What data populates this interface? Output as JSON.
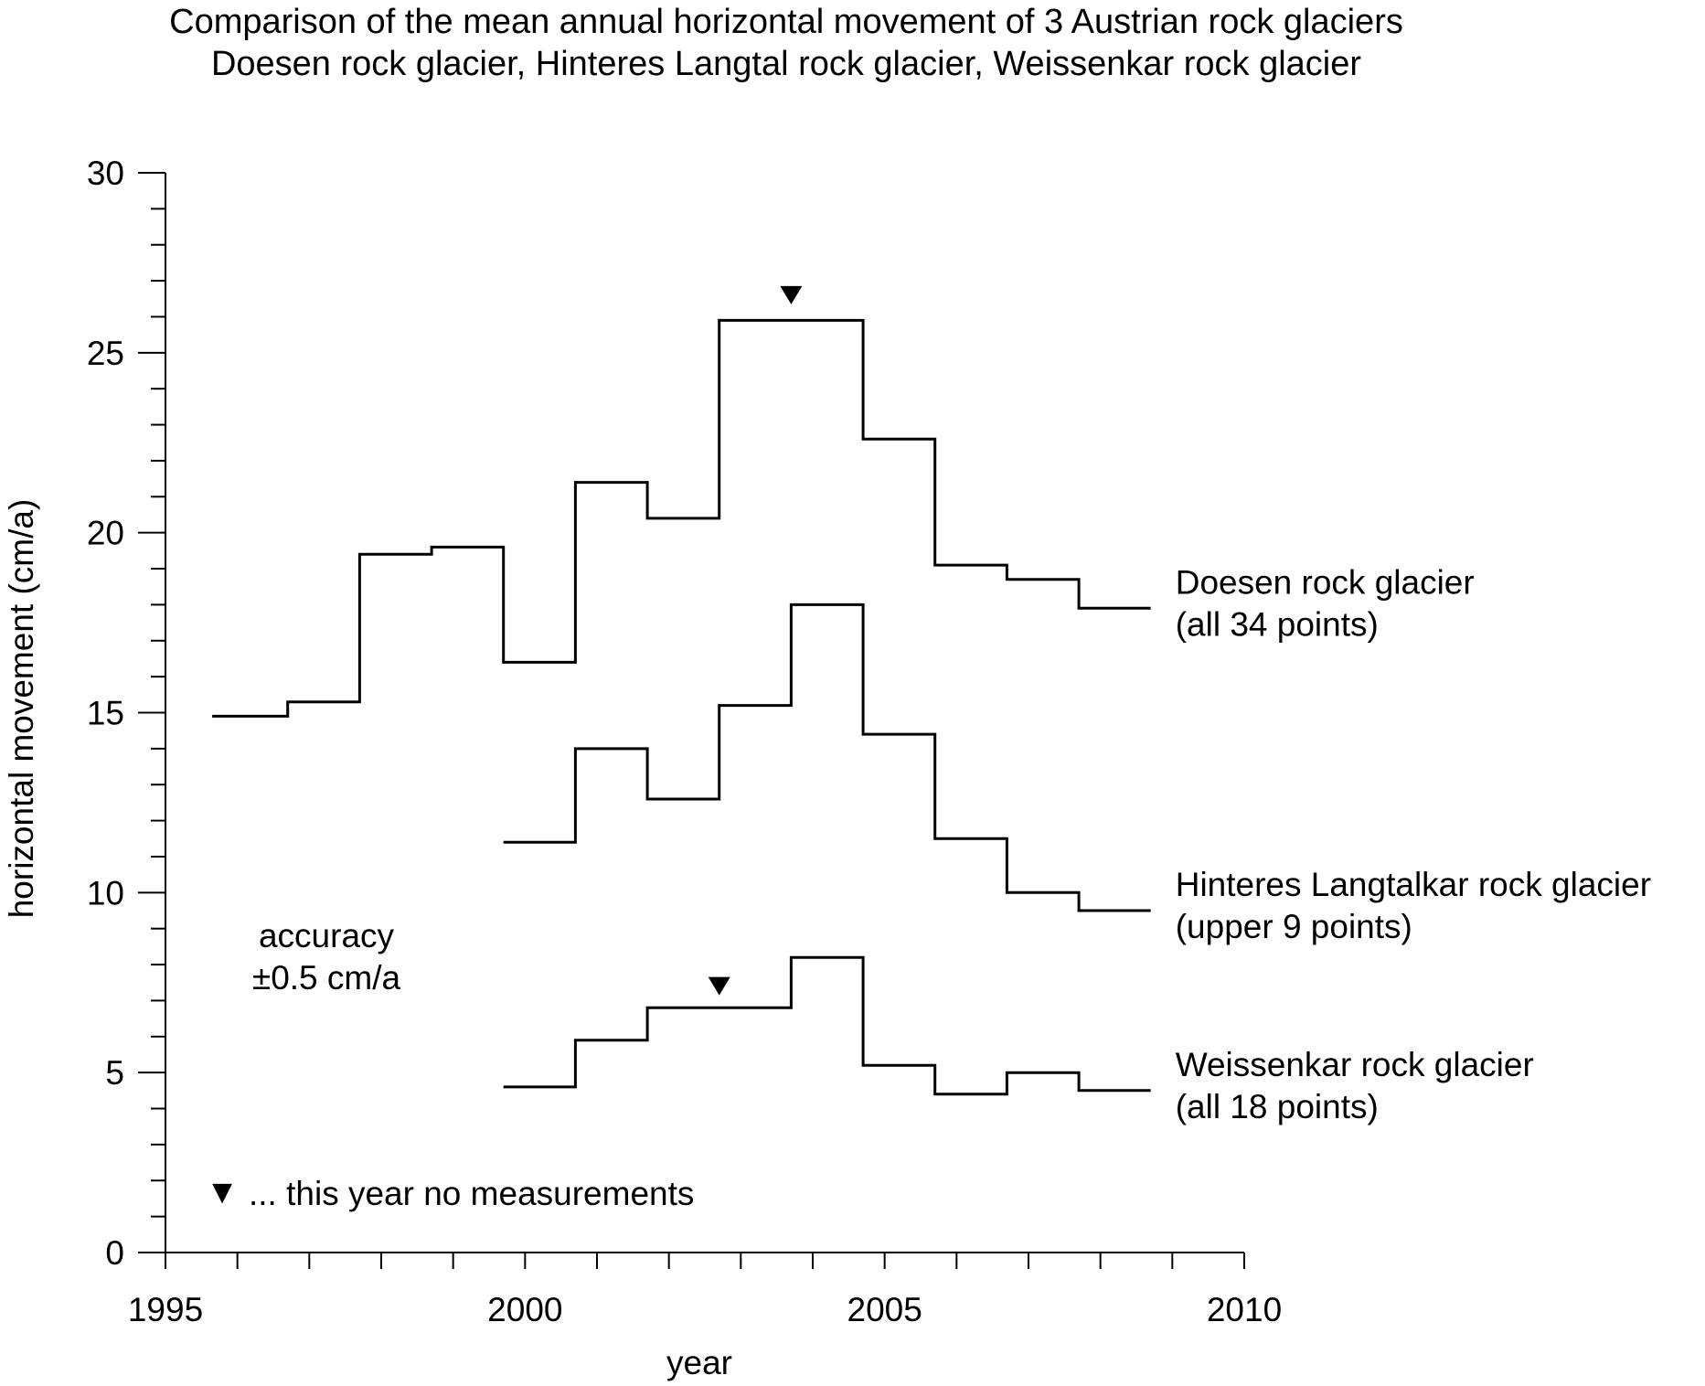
{
  "chart_data": {
    "type": "line",
    "step": true,
    "title": "Comparison of the mean annual horizontal movement of 3 Austrian rock glaciers",
    "subtitle": "Doesen rock glacier, Hinteres Langtal rock glacier, Weissenkar rock glacier",
    "xlabel": "year",
    "ylabel": "horizontal movement (cm/a)",
    "xlim": [
      1995,
      2010
    ],
    "ylim": [
      0,
      30
    ],
    "xticks": [
      1995,
      2000,
      2005,
      2010
    ],
    "yticks": [
      0,
      5,
      10,
      15,
      20,
      25,
      30
    ],
    "xtick_labels": [
      "1995",
      "2000",
      "2005",
      "2010"
    ],
    "ytick_labels": [
      "0",
      "5",
      "10",
      "15",
      "20",
      "25",
      "30"
    ],
    "grid": false,
    "series": [
      {
        "name": "Doesen rock glacier",
        "label_lines": [
          "Doesen rock glacier",
          "(all 34 points)"
        ],
        "segments": [
          {
            "from": 1995.65,
            "to": 1996.7,
            "value": 14.9
          },
          {
            "from": 1996.7,
            "to": 1997.7,
            "value": 15.3
          },
          {
            "from": 1997.7,
            "to": 1998.7,
            "value": 19.4
          },
          {
            "from": 1998.7,
            "to": 1999.7,
            "value": 19.6
          },
          {
            "from": 1999.7,
            "to": 2000.7,
            "value": 16.4
          },
          {
            "from": 2000.7,
            "to": 2001.7,
            "value": 21.4
          },
          {
            "from": 2001.7,
            "to": 2002.7,
            "value": 20.4
          },
          {
            "from": 2002.7,
            "to": 2004.7,
            "value": 25.9
          },
          {
            "from": 2004.7,
            "to": 2005.7,
            "value": 22.6
          },
          {
            "from": 2005.7,
            "to": 2006.7,
            "value": 19.1
          },
          {
            "from": 2006.7,
            "to": 2007.7,
            "value": 18.7
          },
          {
            "from": 2007.7,
            "to": 2008.7,
            "value": 17.9
          }
        ],
        "no_measurement_years": [
          2003.7
        ],
        "no_measurement_marker_value": 26.6
      },
      {
        "name": "Hinteres Langtalkar rock glacier",
        "label_lines": [
          "Hinteres Langtalkar rock glacier",
          "(upper 9 points)"
        ],
        "segments": [
          {
            "from": 1999.7,
            "to": 2000.7,
            "value": 11.4
          },
          {
            "from": 2000.7,
            "to": 2001.7,
            "value": 14.0
          },
          {
            "from": 2001.7,
            "to": 2002.7,
            "value": 12.6
          },
          {
            "from": 2002.7,
            "to": 2003.7,
            "value": 15.2
          },
          {
            "from": 2003.7,
            "to": 2004.7,
            "value": 18.0
          },
          {
            "from": 2004.7,
            "to": 2005.7,
            "value": 14.4
          },
          {
            "from": 2005.7,
            "to": 2006.7,
            "value": 11.5
          },
          {
            "from": 2006.7,
            "to": 2007.7,
            "value": 10.0
          },
          {
            "from": 2007.7,
            "to": 2008.7,
            "value": 9.5
          }
        ],
        "no_measurement_years": []
      },
      {
        "name": "Weissenkar rock glacier",
        "label_lines": [
          "Weissenkar rock glacier",
          "(all 18 points)"
        ],
        "segments": [
          {
            "from": 1999.7,
            "to": 2000.7,
            "value": 4.6
          },
          {
            "from": 2000.7,
            "to": 2001.7,
            "value": 5.9
          },
          {
            "from": 2001.7,
            "to": 2003.7,
            "value": 6.8
          },
          {
            "from": 2003.7,
            "to": 2004.7,
            "value": 8.2
          },
          {
            "from": 2004.7,
            "to": 2005.7,
            "value": 5.2
          },
          {
            "from": 2005.7,
            "to": 2006.7,
            "value": 4.4
          },
          {
            "from": 2006.7,
            "to": 2007.7,
            "value": 5.0
          },
          {
            "from": 2007.7,
            "to": 2008.7,
            "value": 4.5
          }
        ],
        "no_measurement_years": [
          2002.7
        ],
        "no_measurement_marker_value": 7.4
      }
    ],
    "annotations": {
      "accuracy_lines": [
        "accuracy",
        "±0.5 cm/a"
      ],
      "legend_text": "... this year no measurements",
      "legend_marker": "▼"
    },
    "line_color": "#000000"
  }
}
